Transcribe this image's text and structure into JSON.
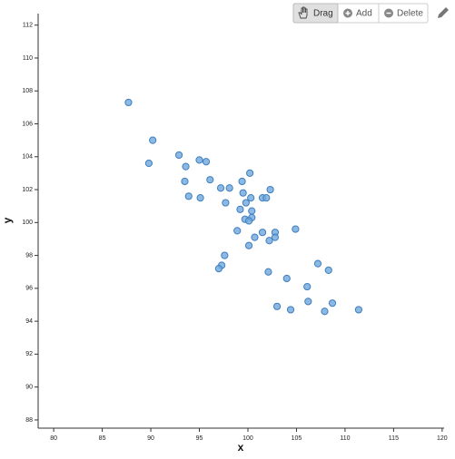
{
  "chart_data": {
    "type": "scatter",
    "x_label": "x",
    "y_label": "y",
    "color": "#6fa8dc",
    "edge_color": "#3d7ebf",
    "xlim": [
      78.4,
      120.2
    ],
    "ylim": [
      87.5,
      112.7
    ],
    "xticks": [
      80,
      85,
      90,
      95,
      100,
      105,
      110,
      115,
      120
    ],
    "yticks": [
      88,
      90,
      92,
      94,
      96,
      98,
      100,
      102,
      104,
      106,
      108,
      110,
      112
    ],
    "x": [
      87.7,
      90.2,
      89.8,
      92.9,
      95.0,
      95.7,
      93.6,
      93.5,
      96.1,
      100.2,
      97.2,
      98.1,
      99.4,
      102.3,
      93.9,
      95.1,
      99.5,
      101.5,
      101.9,
      100.3,
      99.8,
      97.7,
      99.2,
      100.4,
      100.4,
      99.7,
      100.1,
      98.9,
      101.5,
      102.8,
      104.9,
      100.7,
      102.2,
      102.8,
      100.1,
      97.6,
      97.3,
      97.0,
      102.1,
      107.2,
      108.3,
      104.0,
      106.1,
      106.2,
      108.7,
      103.0,
      104.4,
      107.9,
      111.4
    ],
    "values": [
      107.3,
      105.0,
      103.6,
      104.1,
      103.8,
      103.7,
      103.4,
      102.5,
      102.6,
      103.0,
      102.1,
      102.1,
      102.5,
      102.0,
      101.6,
      101.5,
      101.8,
      101.5,
      101.5,
      101.5,
      101.2,
      101.2,
      100.8,
      100.7,
      100.3,
      100.2,
      100.1,
      99.5,
      99.4,
      99.4,
      99.6,
      99.1,
      98.9,
      99.1,
      98.6,
      98.0,
      97.4,
      97.2,
      97.0,
      97.5,
      97.1,
      96.6,
      96.1,
      95.2,
      95.1,
      94.9,
      94.7,
      94.6,
      94.7
    ]
  },
  "toolbar": {
    "buttons": [
      "Drag",
      "Add",
      "Delete"
    ]
  }
}
